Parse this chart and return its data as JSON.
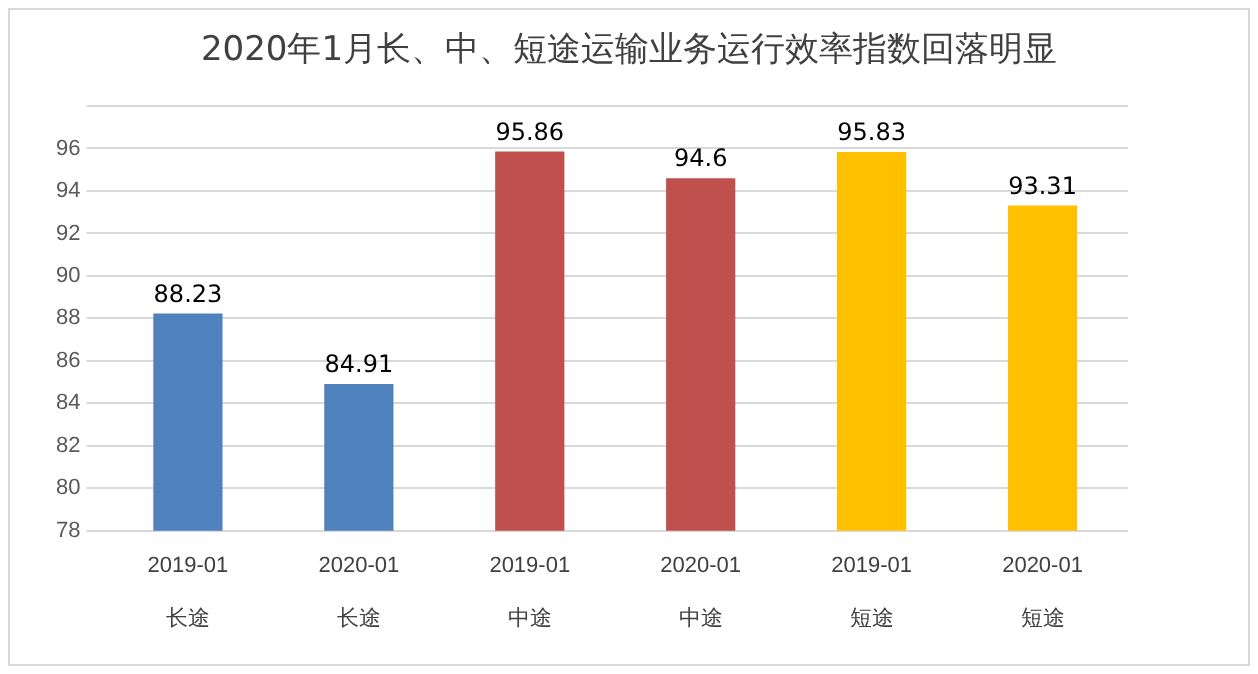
{
  "chart_data": {
    "type": "bar",
    "title": "2020年1月长、中、短途运输业务运行效率指数回落明显",
    "categories": [
      "2019-01\n长途",
      "2020-01\n长途",
      "2019-01\n中途",
      "2020-01\n中途",
      "2019-01\n短途",
      "2020-01\n短途"
    ],
    "values": [
      88.23,
      84.91,
      95.86,
      94.6,
      95.83,
      93.31
    ],
    "colors": [
      "#4f81bd",
      "#4f81bd",
      "#c0504d",
      "#c0504d",
      "#ffc000",
      "#ffc000"
    ],
    "ylim": [
      78,
      98
    ],
    "yticks": [
      78,
      80,
      82,
      84,
      86,
      88,
      90,
      92,
      94,
      96,
      {
        "value": 98,
        "label": null
      }
    ],
    "grid": "y",
    "data_labels": true,
    "legend": false
  }
}
